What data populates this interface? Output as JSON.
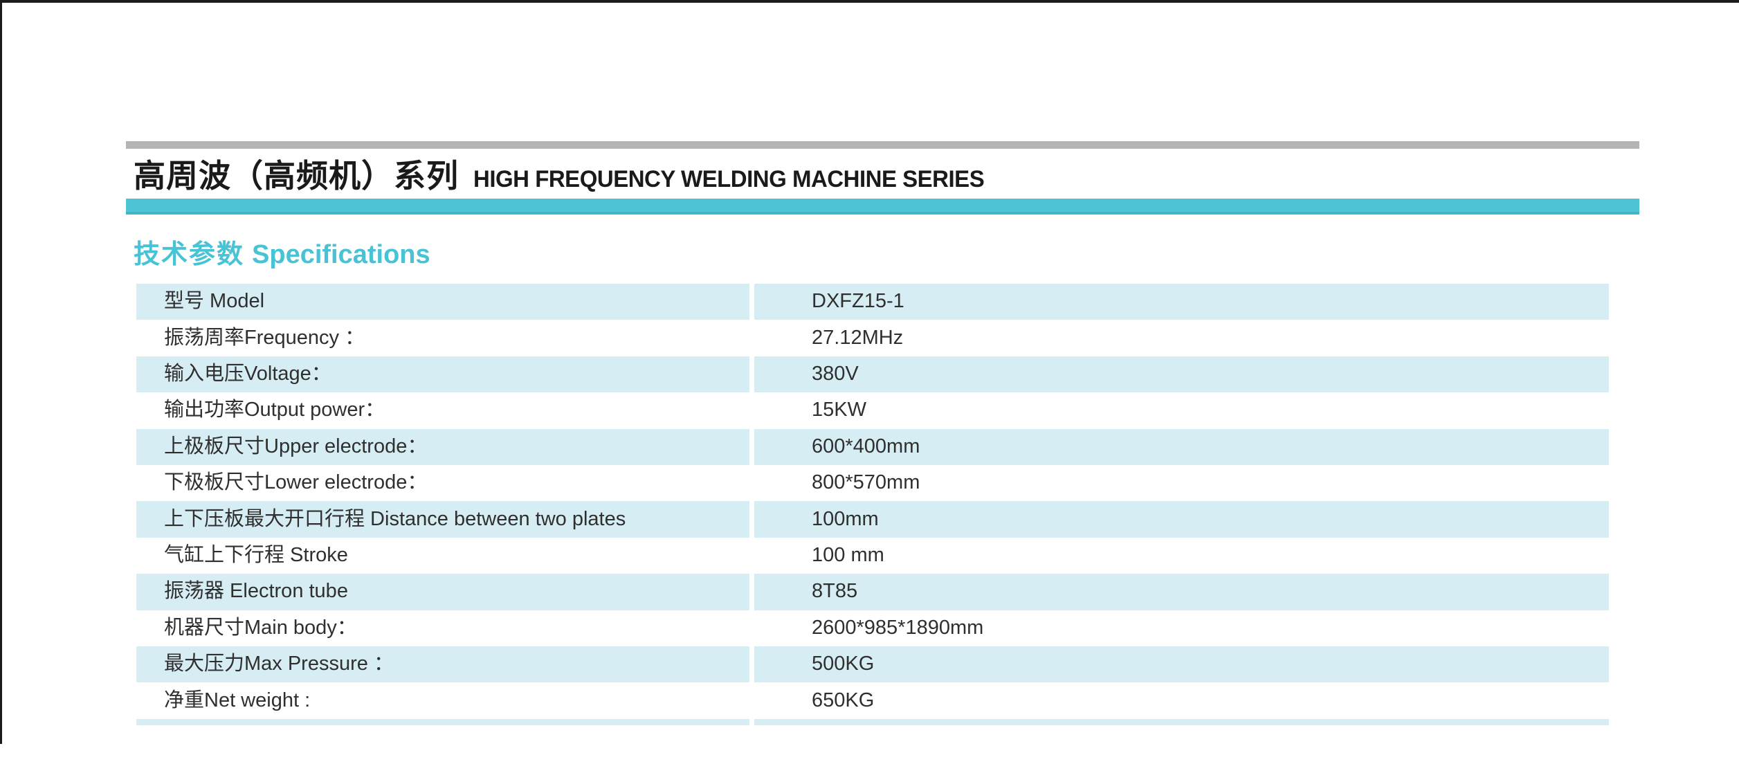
{
  "page": {
    "title_cn": "高周波（高频机）系列",
    "title_en": "HIGH FREQUENCY WELDING MACHINE SERIES",
    "section_heading_cn": "技术参数",
    "section_heading_en": "Specifications"
  },
  "colors": {
    "accent_cyan": "#4ec5d7",
    "accent_cyan_edge": "#41b5c9",
    "heading_teal": "#48c3d5",
    "row_blue": "#d7edf4",
    "top_rule_gray": "#b4b4b6",
    "frame_black": "#1c1c1c",
    "text_dark": "#2f2f2f",
    "title_black": "#1a1a1a"
  },
  "spec_table": {
    "rows": [
      {
        "label": "型号 Model",
        "value": "DXFZ15-1"
      },
      {
        "label": "振荡周率Frequency ：",
        "value": "27.12MHz"
      },
      {
        "label": "输入电压Voltage：",
        "value": "380V"
      },
      {
        "label": "输出功率Output power：",
        "value": "15KW"
      },
      {
        "label": "上极板尺寸Upper electrode：",
        "value": "600*400mm"
      },
      {
        "label": "下极板尺寸Lower electrode：",
        "value": "800*570mm"
      },
      {
        "label": "上下压板最大开口行程 Distance between two plates",
        "value": "100mm"
      },
      {
        "label": "气缸上下行程 Stroke",
        "value": "100 mm"
      },
      {
        "label": "振荡器 Electron tube",
        "value": "8T85"
      },
      {
        "label": "机器尺寸Main body：",
        "value": "2600*985*1890mm"
      },
      {
        "label": "最大压力Max Pressure ：",
        "value": "500KG"
      },
      {
        "label": "净重Net weight :",
        "value": "650KG"
      }
    ]
  }
}
